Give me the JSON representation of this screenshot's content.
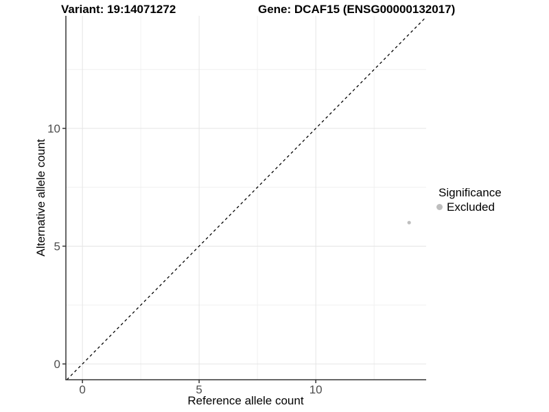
{
  "chart_data": {
    "type": "scatter",
    "title_variant": "Variant: 19:14071272",
    "title_gene": "Gene: DCAF15 (ENSG00000132017)",
    "xlabel": "Reference allele count",
    "ylabel": "Alternative allele count",
    "x_major_ticks": [
      0,
      5,
      10
    ],
    "x_minor_ticks": [
      2.5,
      7.5,
      12.5
    ],
    "y_major_ticks": [
      0,
      5,
      10
    ],
    "y_minor_ticks": [
      2.5,
      7.5,
      12.5
    ],
    "xlim": [
      -0.71,
      14.73
    ],
    "ylim": [
      -0.67,
      14.78
    ],
    "grid": true,
    "points": [
      {
        "x": 14,
        "y": 6,
        "series": "Excluded"
      }
    ],
    "reference_line": {
      "type": "identity",
      "equation": "y = x",
      "style": "dashed"
    },
    "legend": {
      "position": "right",
      "title": "Significance",
      "items": [
        {
          "label": "Excluded",
          "color": "#bebebe"
        }
      ]
    },
    "colors": {
      "point": "#bebebe",
      "major_grid": "#e4e4e4",
      "minor_grid": "#f0f0f0",
      "axis_line": "#333333",
      "tick_text": "#4d4d4d",
      "reference_line": "#000000",
      "title_text": "#000000"
    }
  }
}
